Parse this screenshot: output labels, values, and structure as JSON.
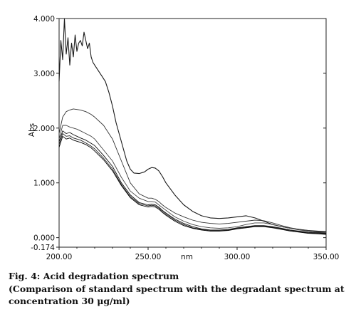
{
  "figure": {
    "caption_label": "Fig. 4:",
    "caption_title": "Acid degradation spectrum",
    "caption_sub_1": "(Comparison of standard spectrum with the degradant spectrum at",
    "caption_sub_2": "concentration 30 μg/ml)"
  },
  "chart_data": {
    "type": "line",
    "xlabel": "nm",
    "ylabel": "Abs",
    "xlim": [
      200.0,
      350.0
    ],
    "ylim": [
      -0.174,
      4.0
    ],
    "x_ticks": [
      {
        "value": 200,
        "label": "200.00"
      },
      {
        "value": 250,
        "label": "250.00"
      },
      {
        "value": 300,
        "label": "300.00"
      },
      {
        "value": 350,
        "label": "350.00"
      }
    ],
    "y_ticks": [
      {
        "value": 4.0,
        "label": "4.000"
      },
      {
        "value": 3.0,
        "label": "3.000"
      },
      {
        "value": 2.0,
        "label": "2.000"
      },
      {
        "value": 1.0,
        "label": "1.000"
      },
      {
        "value": 0.0,
        "label": "0.000"
      },
      {
        "value": -0.174,
        "label": "-0.174"
      }
    ],
    "grid": false,
    "legend": "none",
    "series": [
      {
        "color": "#1a1a1a",
        "x": [
          200,
          201,
          202,
          203,
          204,
          205,
          206,
          207,
          208,
          209,
          210,
          211,
          212,
          213,
          214,
          215,
          216,
          217,
          218,
          219,
          220,
          222,
          224,
          226,
          228,
          230,
          232,
          235,
          238,
          240,
          242,
          245,
          248,
          250,
          252,
          254,
          256,
          258,
          260,
          265,
          270,
          275,
          280,
          285,
          290,
          295,
          300,
          305,
          310,
          315,
          320,
          325,
          330,
          335,
          340,
          345,
          350
        ],
        "y": [
          2.85,
          3.6,
          3.25,
          4.0,
          3.35,
          3.65,
          3.15,
          3.55,
          3.3,
          3.7,
          3.4,
          3.55,
          3.6,
          3.5,
          3.75,
          3.6,
          3.45,
          3.55,
          3.3,
          3.2,
          3.15,
          3.05,
          2.95,
          2.85,
          2.65,
          2.4,
          2.1,
          1.75,
          1.4,
          1.25,
          1.18,
          1.17,
          1.2,
          1.25,
          1.28,
          1.27,
          1.22,
          1.12,
          1.0,
          0.78,
          0.6,
          0.48,
          0.4,
          0.36,
          0.35,
          0.36,
          0.38,
          0.4,
          0.36,
          0.3,
          0.24,
          0.2,
          0.17,
          0.15,
          0.13,
          0.12,
          0.11
        ]
      },
      {
        "color": "#333333",
        "x": [
          200,
          202,
          204,
          206,
          208,
          210,
          212,
          215,
          218,
          220,
          225,
          230,
          235,
          240,
          245,
          250,
          252,
          254,
          256,
          258,
          260,
          265,
          270,
          275,
          280,
          285,
          290,
          295,
          300,
          305,
          310,
          315,
          320,
          325,
          330,
          335,
          340,
          345,
          350
        ],
        "y": [
          1.9,
          2.2,
          2.3,
          2.33,
          2.35,
          2.34,
          2.33,
          2.3,
          2.25,
          2.2,
          2.05,
          1.8,
          1.4,
          1.0,
          0.8,
          0.72,
          0.72,
          0.7,
          0.66,
          0.6,
          0.55,
          0.45,
          0.38,
          0.32,
          0.28,
          0.26,
          0.25,
          0.26,
          0.28,
          0.3,
          0.32,
          0.31,
          0.27,
          0.22,
          0.18,
          0.15,
          0.13,
          0.11,
          0.1
        ]
      },
      {
        "color": "#444444",
        "x": [
          200,
          202,
          204,
          206,
          208,
          210,
          212,
          215,
          218,
          220,
          225,
          230,
          235,
          240,
          245,
          250,
          252,
          254,
          256,
          258,
          260,
          265,
          270,
          275,
          280,
          285,
          290,
          295,
          300,
          305,
          310,
          315,
          320,
          325,
          330,
          335,
          340,
          345,
          350
        ],
        "y": [
          1.8,
          2.05,
          2.05,
          2.02,
          2.0,
          1.98,
          1.95,
          1.9,
          1.85,
          1.8,
          1.6,
          1.4,
          1.1,
          0.85,
          0.72,
          0.66,
          0.66,
          0.65,
          0.6,
          0.55,
          0.5,
          0.38,
          0.3,
          0.24,
          0.2,
          0.18,
          0.17,
          0.18,
          0.2,
          0.24,
          0.27,
          0.27,
          0.24,
          0.2,
          0.17,
          0.14,
          0.12,
          0.1,
          0.09
        ]
      },
      {
        "color": "#111111",
        "x": [
          200,
          202,
          204,
          206,
          208,
          210,
          212,
          215,
          218,
          220,
          225,
          230,
          235,
          240,
          245,
          250,
          252,
          254,
          256,
          258,
          260,
          265,
          270,
          275,
          280,
          285,
          290,
          295,
          300,
          305,
          310,
          315,
          320,
          325,
          330,
          335,
          340,
          345,
          350
        ],
        "y": [
          1.75,
          1.95,
          1.9,
          1.92,
          1.88,
          1.85,
          1.82,
          1.78,
          1.72,
          1.68,
          1.5,
          1.3,
          1.0,
          0.78,
          0.64,
          0.6,
          0.61,
          0.6,
          0.56,
          0.5,
          0.45,
          0.34,
          0.26,
          0.2,
          0.16,
          0.14,
          0.14,
          0.15,
          0.18,
          0.2,
          0.22,
          0.22,
          0.2,
          0.17,
          0.14,
          0.12,
          0.1,
          0.09,
          0.08
        ]
      },
      {
        "color": "#222222",
        "x": [
          200,
          202,
          204,
          206,
          208,
          210,
          212,
          215,
          218,
          220,
          225,
          230,
          235,
          240,
          245,
          250,
          252,
          254,
          256,
          258,
          260,
          265,
          270,
          275,
          280,
          285,
          290,
          295,
          300,
          305,
          310,
          315,
          320,
          325,
          330,
          335,
          340,
          345,
          350
        ],
        "y": [
          1.7,
          1.9,
          1.85,
          1.86,
          1.82,
          1.8,
          1.78,
          1.73,
          1.67,
          1.62,
          1.45,
          1.25,
          0.97,
          0.75,
          0.62,
          0.58,
          0.59,
          0.58,
          0.54,
          0.48,
          0.43,
          0.32,
          0.24,
          0.18,
          0.15,
          0.13,
          0.13,
          0.14,
          0.17,
          0.19,
          0.21,
          0.21,
          0.19,
          0.16,
          0.13,
          0.11,
          0.09,
          0.08,
          0.07
        ]
      },
      {
        "color": "#000000",
        "x": [
          200,
          202,
          204,
          206,
          208,
          210,
          212,
          215,
          218,
          220,
          225,
          230,
          235,
          240,
          245,
          250,
          252,
          254,
          256,
          258,
          260,
          265,
          270,
          275,
          280,
          285,
          290,
          295,
          300,
          305,
          310,
          315,
          320,
          325,
          330,
          335,
          340,
          345,
          350
        ],
        "y": [
          1.65,
          1.85,
          1.8,
          1.82,
          1.78,
          1.76,
          1.74,
          1.7,
          1.64,
          1.58,
          1.42,
          1.22,
          0.95,
          0.73,
          0.6,
          0.56,
          0.57,
          0.56,
          0.52,
          0.46,
          0.41,
          0.3,
          0.22,
          0.17,
          0.14,
          0.12,
          0.12,
          0.13,
          0.16,
          0.18,
          0.2,
          0.2,
          0.18,
          0.15,
          0.12,
          0.1,
          0.08,
          0.07,
          0.06
        ]
      }
    ]
  }
}
